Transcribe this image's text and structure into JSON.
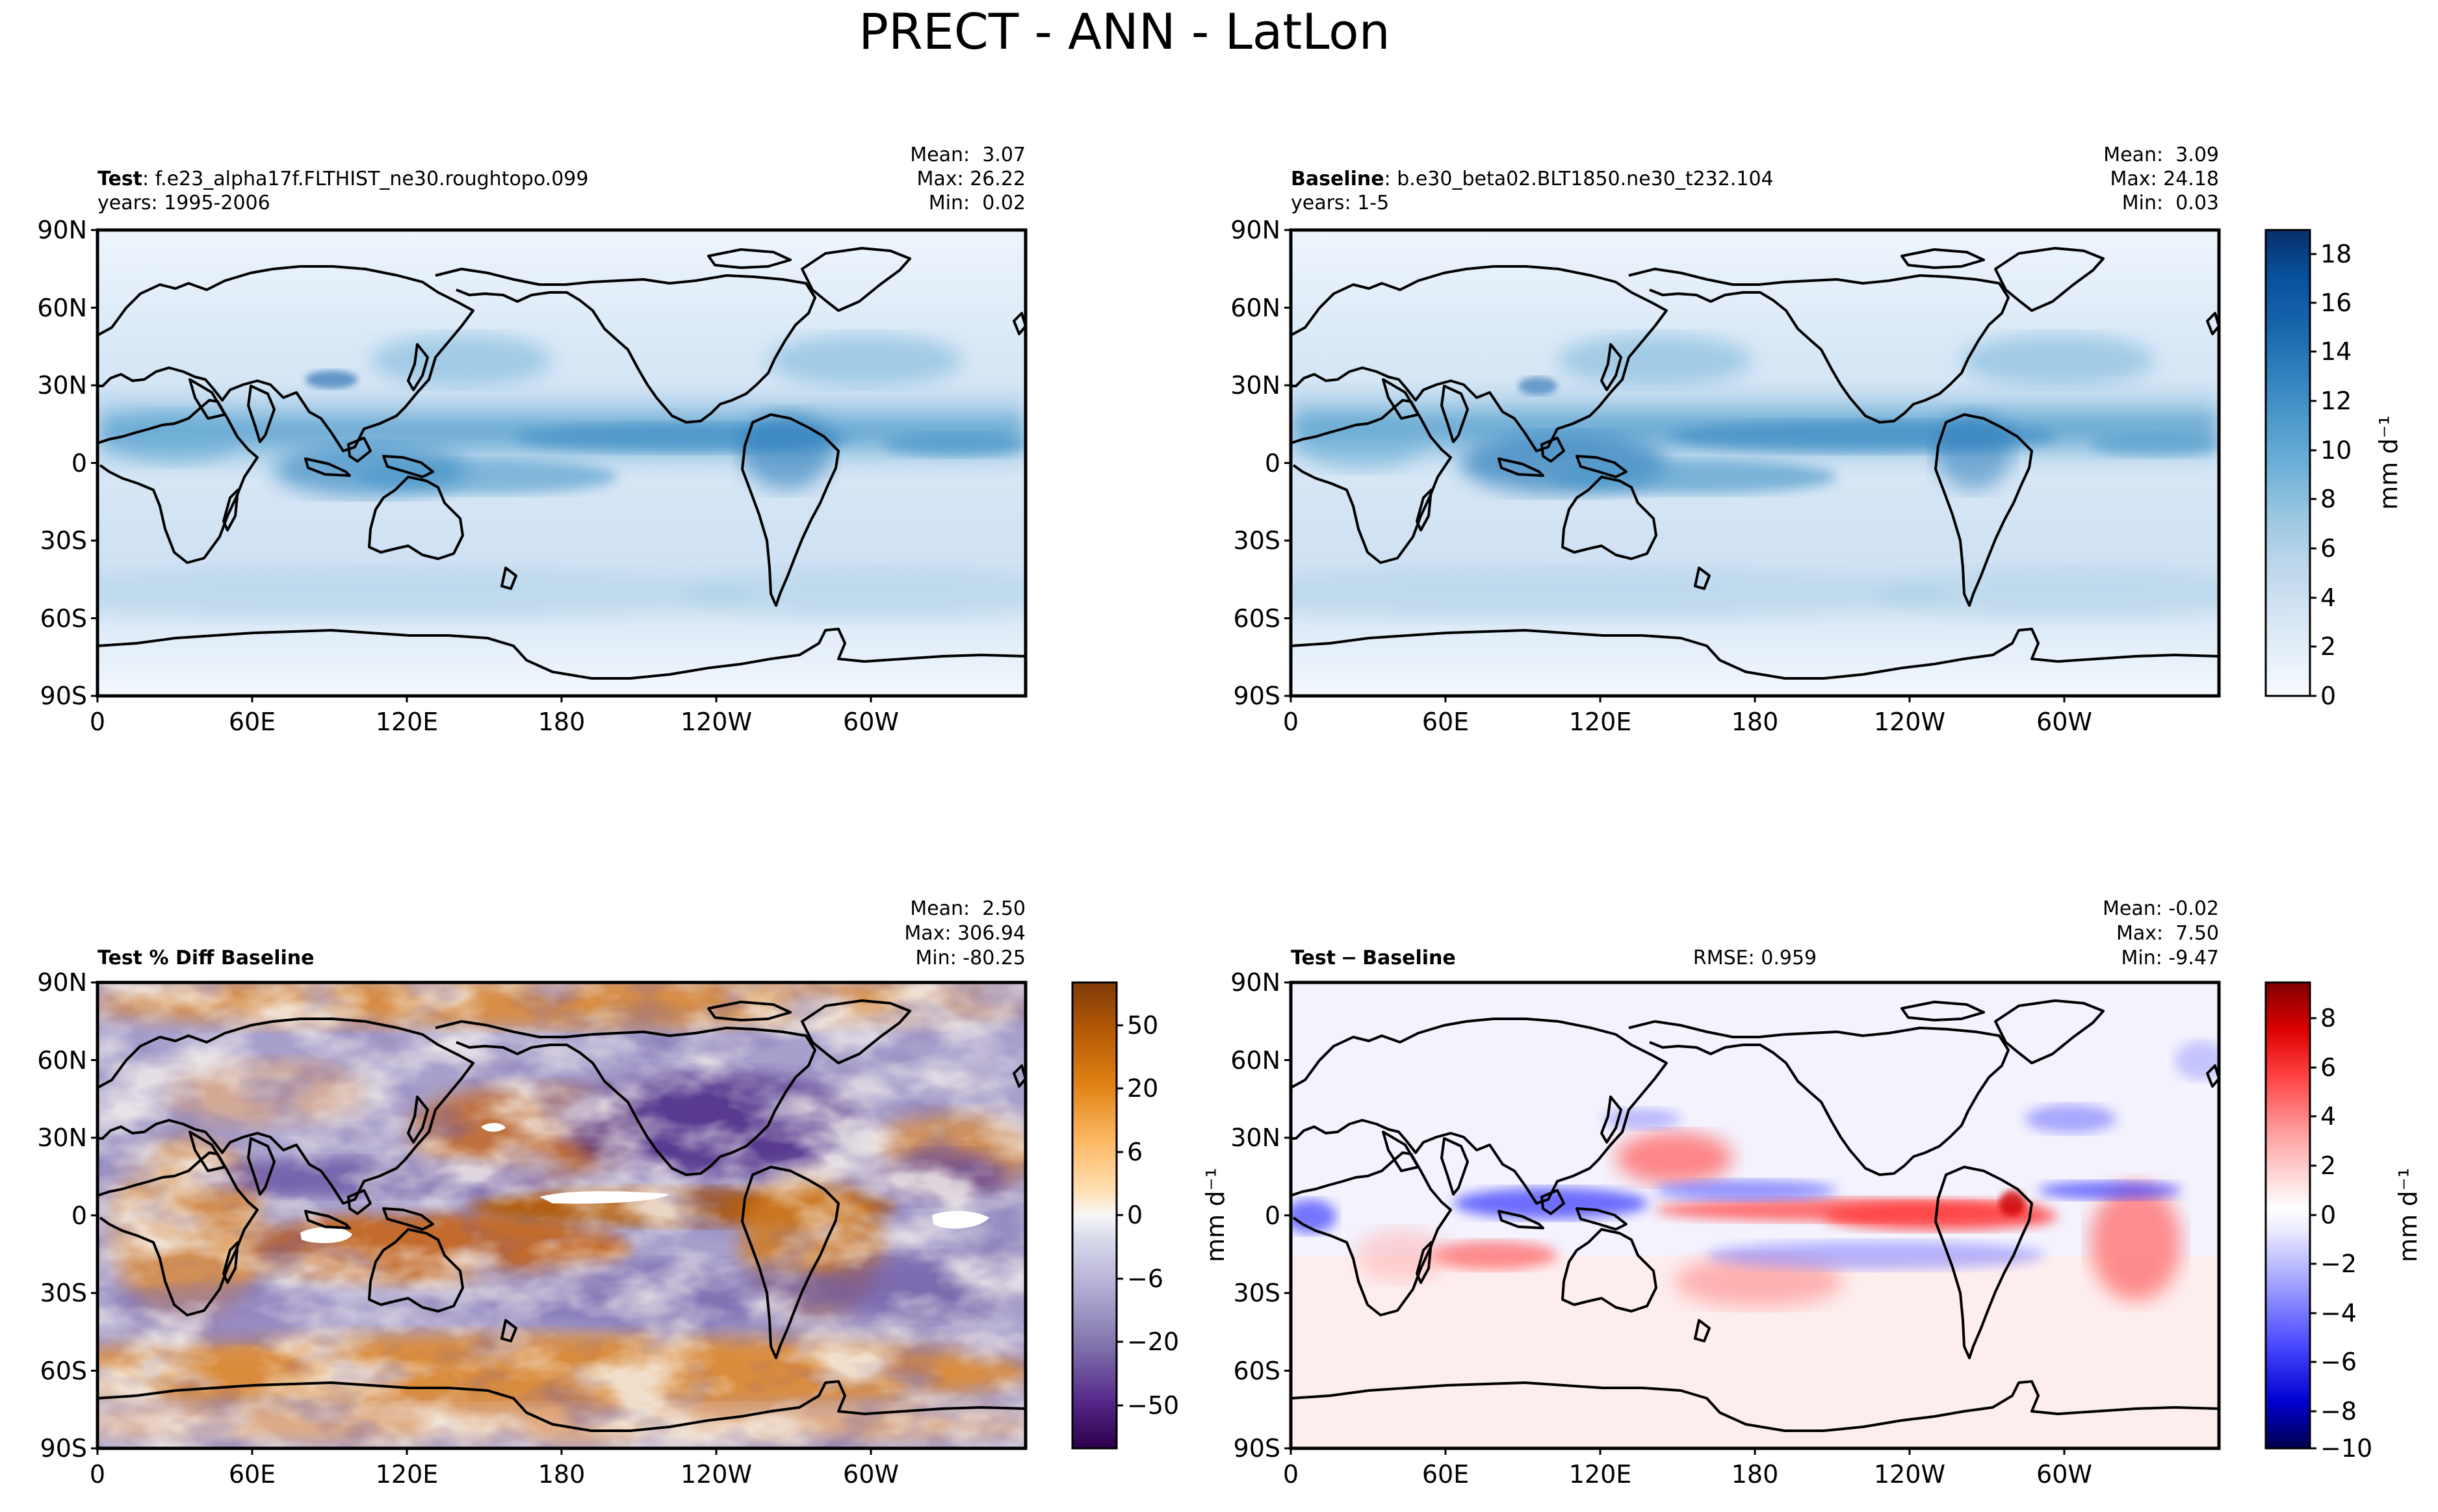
{
  "suptitle": "PRECT - ANN - LatLon",
  "panels": {
    "test": {
      "label_bold": "Test",
      "label_rest": ": f.e23_alpha17f.FLTHIST_ne30.roughtopo.099",
      "years": "years: 1995-2006",
      "stats": [
        "Mean:  3.07",
        "Max: 26.22",
        "Min:  0.02"
      ]
    },
    "baseline": {
      "label_bold": "Baseline",
      "label_rest": ": b.e30_beta02.BLT1850.ne30_t232.104",
      "years": "years: 1-5",
      "stats": [
        "Mean:  3.09",
        "Max: 24.18",
        "Min:  0.03"
      ]
    },
    "pctdiff": {
      "label_bold": "Test % Diff Baseline",
      "stats": [
        "Mean:  2.50",
        "Max: 306.94",
        "Min: -80.25"
      ]
    },
    "diff": {
      "label_bold": "Test",
      "label_minus": "−",
      "label_rest": "Baseline",
      "rmse": "RMSE: 0.959",
      "stats": [
        "Mean: -0.02",
        "Max:  7.50",
        "Min: -9.47"
      ]
    }
  },
  "axes": {
    "lat_ticks": [
      "90N",
      "60N",
      "30N",
      "0",
      "30S",
      "60S",
      "90S"
    ],
    "lon_ticks": [
      "0",
      "60E",
      "120E",
      "180",
      "120W",
      "60W"
    ]
  },
  "colorbars": {
    "precip": {
      "ticks": [
        "18",
        "16",
        "14",
        "12",
        "10",
        "8",
        "6",
        "4",
        "2",
        "0"
      ],
      "label": "mm d⁻¹",
      "colors": [
        "#f7fbff",
        "#e3eef9",
        "#d0e1f2",
        "#b7d4ea",
        "#94c4df",
        "#6aaed6",
        "#4a98c9",
        "#2e7ebc",
        "#1764ab",
        "#08519c",
        "#08306b"
      ]
    },
    "pct": {
      "ticks": [
        "50",
        "20",
        "6",
        "0",
        "−6",
        "−20",
        "−50"
      ],
      "colors": [
        "#2d004b",
        "#542788",
        "#8073ac",
        "#b2abd2",
        "#d8daeb",
        "#f7f7f7",
        "#fee0b6",
        "#fdb863",
        "#e08214",
        "#b35806",
        "#7f3b08"
      ]
    },
    "diff": {
      "ticks": [
        "8",
        "6",
        "4",
        "2",
        "0",
        "−2",
        "−4",
        "−6",
        "−8",
        "−10"
      ],
      "label": "mm d⁻¹",
      "colors": [
        "#00004c",
        "#0000d0",
        "#4848ff",
        "#a6a6ff",
        "#e8e8ff",
        "#ffffff",
        "#ffe6e6",
        "#ff9d9d",
        "#ff4141",
        "#dc0000",
        "#800000"
      ]
    }
  },
  "diff_ylabel": "mm d⁻¹",
  "chart_data": [
    {
      "type": "heatmap",
      "title": "Test",
      "units": "mm d⁻¹",
      "mean": 3.07,
      "max": 26.22,
      "min": 0.02,
      "clim": [
        0,
        19
      ]
    },
    {
      "type": "heatmap",
      "title": "Baseline",
      "units": "mm d⁻¹",
      "mean": 3.09,
      "max": 24.18,
      "min": 0.03,
      "clim": [
        0,
        19
      ]
    },
    {
      "type": "heatmap",
      "title": "Test % Diff Baseline",
      "mean": 2.5,
      "max": 306.94,
      "min": -80.25,
      "clim": [
        -70,
        70
      ]
    },
    {
      "type": "heatmap",
      "title": "Test − Baseline",
      "units": "mm d⁻¹",
      "mean": -0.02,
      "max": 7.5,
      "min": -9.47,
      "rmse": 0.959,
      "clim": [
        -10,
        9.5
      ]
    }
  ]
}
